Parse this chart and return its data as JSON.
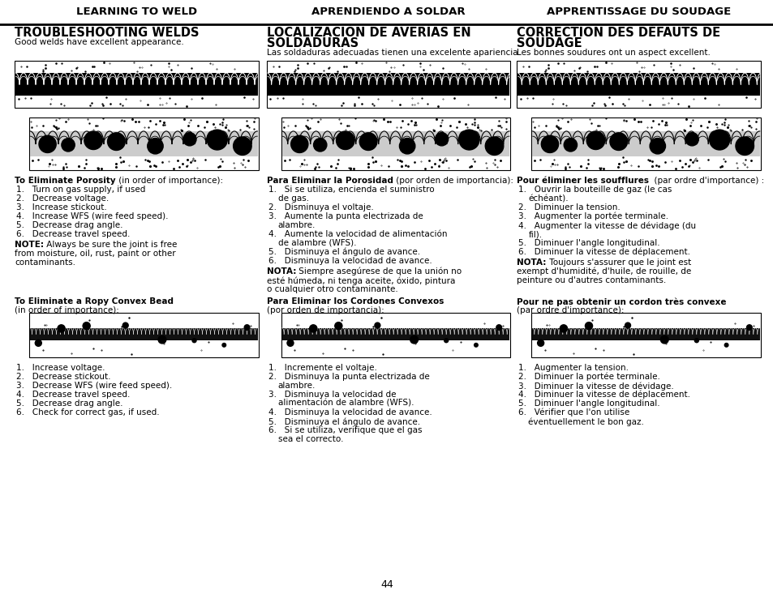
{
  "page_bg": "#ffffff",
  "header_titles": [
    "LEARNING TO WELD",
    "APRENDIENDO A SOLDAR",
    "APPRENTISSAGE DU SOUDAGE"
  ],
  "col1_heading_line1": "TROUBLESHOOTING WELDS",
  "col1_subheading": "Good welds have excellent appearance.",
  "col2_heading_line1": "LOCALIZACIÓN DE AVERÍAS EN",
  "col2_heading_line2": "SOLDADURAS",
  "col2_subheading": "Las soldaduras adecuadas tienen una excelente apariencia.",
  "col3_heading_line1": "CORRECTION DES DÉFAUTS DE",
  "col3_heading_line2": "SOUDAGE",
  "col3_subheading": "Les bonnes soudures ont un aspect excellent.",
  "col1_s2_bold": "To Eliminate Porosity",
  "col1_s2_rest": " (in order of importance):",
  "col1_s2_items": [
    "Turn on gas supply, if used",
    "Decrease voltage.",
    "Increase stickout.",
    "Increase WFS (wire feed speed).",
    "Decrease drag angle.",
    "Decrease travel speed."
  ],
  "col1_note_bold": "NOTE:",
  "col1_note_rest": " Always be sure the joint is free from moisture, oil, rust, paint or other contaminants.",
  "col1_s3_bold": "To Eliminate a Ropy Convex Bead",
  "col1_s3_sub": "(in order of importance):",
  "col1_s3_items": [
    "Increase voltage.",
    "Decrease stickout.",
    "Decrease WFS (wire feed speed).",
    "Decrease travel speed.",
    "Decrease drag angle.",
    "Check for correct gas, if used."
  ],
  "col2_s2_bold": "Para Eliminar la Porosidad",
  "col2_s2_rest": " (por orden de importancia):",
  "col2_s2_items": [
    "Si se utiliza, encienda el suministro de gas.",
    "Disminuya el voltaje.",
    "Aumente la punta electrizada de alambre.",
    "Aumente la velocidad de alimentación de alambre (WFS).",
    "Disminuya el ángulo de avance.",
    "Disminuya la velocidad de avance."
  ],
  "col2_note_bold": "NOTA:",
  "col2_note_rest": " Siempre asegúrese de que la unión no esté húmeda, ni tenga aceite, óxido, pintura o cualquier otro contaminante.",
  "col2_s3_bold": "Para Eliminar los Cordones Convexos",
  "col2_s3_sub": "(por orden de importancia):",
  "col2_s3_items": [
    "Incremente el voltaje.",
    "Disminuya la punta electrizada de alambre.",
    "Disminuya la velocidad de alimentación de alambre (WFS).",
    "Disminuya la velocidad de avance.",
    "Disminuya el ángulo de avance.",
    "Si se utiliza, verifique que el gas sea el correcto."
  ],
  "col3_s2_bold": "Pour éliminer les soufflures",
  "col3_s2_rest": "  (par ordre d'importance) :",
  "col3_s2_items": [
    "Ouvrir la bouteille de gaz (le cas échéant).",
    "Diminuer la tension.",
    "Augmenter la portée terminale.",
    "Augmenter la vitesse de dévidage (du fil).",
    "Diminuer l'angle longitudinal.",
    "Diminuer la vitesse de déplacement."
  ],
  "col3_note_bold": "NOTA:",
  "col3_note_rest": " Toujours s'assurer que le joint est exempt d'humidité, d'huile, de rouille, de peinture ou d'autres contaminants.",
  "col3_s3_bold": "Pour ne pas obtenir un cordon très convexe",
  "col3_s3_sub": "(par ordre d'importance):",
  "col3_s3_items": [
    "Augmenter la tension.",
    "Diminuer la portée terminale.",
    "Diminuer la vitesse de dévidage.",
    "Diminuer la vitesse de déplacement.",
    "Diminuer l'angle longitudinal.",
    "Vérifier que l'on utilise éventuellement le bon gaz."
  ],
  "page_number": "44"
}
